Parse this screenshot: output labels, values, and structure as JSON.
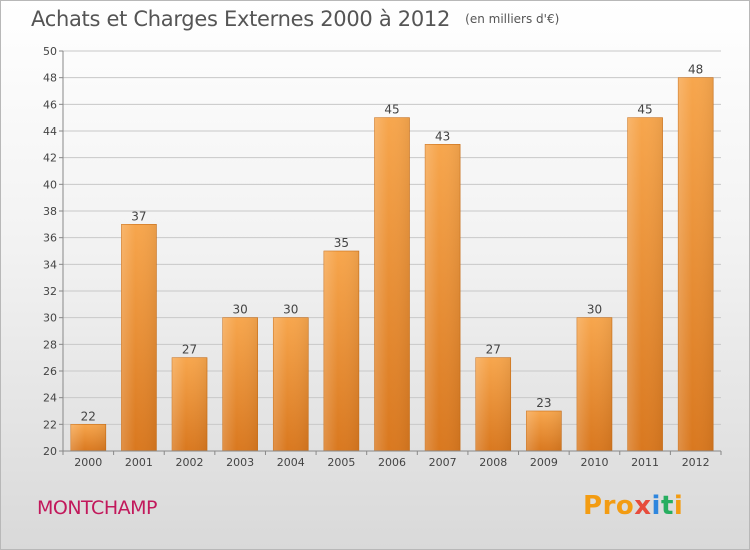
{
  "header": {
    "title": "Achats et Charges Externes 2000 à 2012",
    "unit": "(en milliers d'€)"
  },
  "commune": "MONTCHAMP",
  "logo": {
    "text": "Proxiti"
  },
  "colors": {
    "bar_top": "#f7a64d",
    "bar_bottom": "#d9781f",
    "grid": "#c8c8c8",
    "commune": "#c2185b"
  },
  "chart_data": {
    "type": "bar",
    "title": "Achats et Charges Externes 2000 à 2012",
    "subtitle": "(en milliers d'€)",
    "xlabel": "",
    "ylabel": "",
    "categories": [
      "2000",
      "2001",
      "2002",
      "2003",
      "2004",
      "2005",
      "2006",
      "2007",
      "2008",
      "2009",
      "2010",
      "2011",
      "2012"
    ],
    "values": [
      22,
      37,
      27,
      30,
      30,
      35,
      45,
      43,
      27,
      23,
      30,
      45,
      48
    ],
    "ylim": [
      20,
      50
    ],
    "yticks": [
      20,
      22,
      24,
      26,
      28,
      30,
      32,
      34,
      36,
      38,
      40,
      42,
      44,
      46,
      48,
      50
    ],
    "grid": true,
    "data_labels": true
  }
}
